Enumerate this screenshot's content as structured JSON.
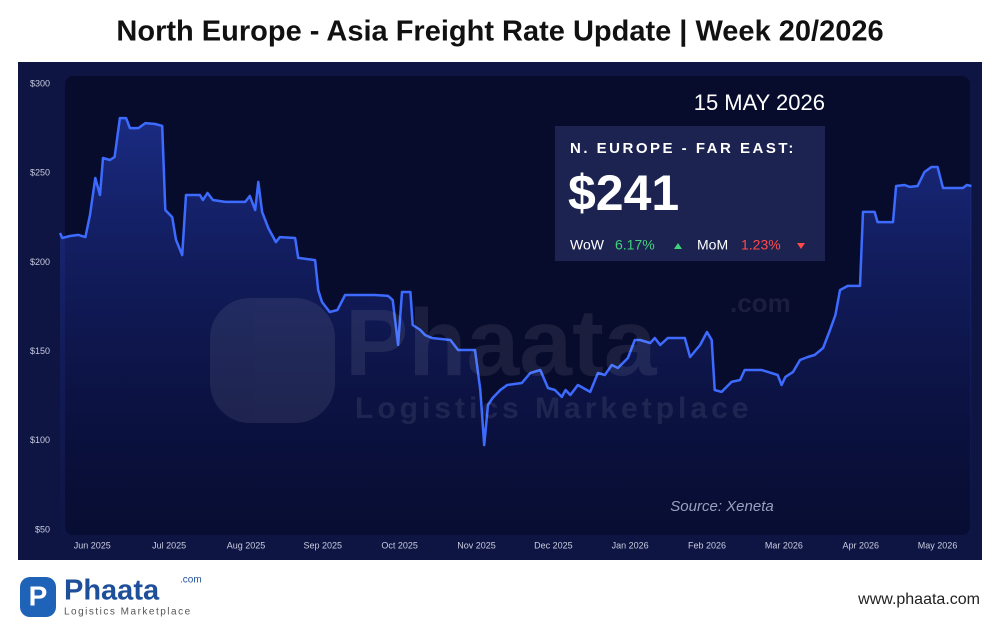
{
  "chart_data": {
    "type": "line",
    "title": "North Europe - Asia Freight Rate Update | Week 20/2026",
    "color": "#3d6bff",
    "x": [
      -0.42,
      -0.39,
      -0.29,
      -0.18,
      -0.09,
      -0.03,
      0.04,
      0.1,
      0.14,
      0.23,
      0.29,
      0.36,
      0.44,
      0.49,
      0.6,
      0.69,
      0.82,
      0.91,
      0.95,
      1.04,
      1.09,
      1.17,
      1.22,
      1.4,
      1.44,
      1.5,
      1.57,
      1.73,
      1.99,
      2.05,
      2.12,
      2.16,
      2.21,
      2.29,
      2.39,
      2.44,
      2.64,
      2.68,
      2.9,
      2.94,
      2.99,
      3.09,
      3.19,
      3.29,
      3.68,
      3.85,
      3.91,
      3.98,
      4.03,
      4.14,
      4.17,
      4.27,
      4.33,
      4.42,
      4.66,
      4.76,
      4.98,
      5.05,
      5.1,
      5.15,
      5.21,
      5.31,
      5.4,
      5.59,
      5.7,
      5.83,
      5.93,
      6.02,
      6.11,
      6.16,
      6.22,
      6.32,
      6.48,
      6.58,
      6.67,
      6.76,
      6.84,
      6.97,
      7.06,
      7.13,
      7.26,
      7.32,
      7.39,
      7.49,
      7.71,
      7.78,
      7.91,
      8.0,
      8.06,
      8.1,
      8.19,
      8.32,
      8.43,
      8.49,
      8.71,
      8.92,
      8.97,
      9.02,
      9.12,
      9.21,
      9.31,
      9.4,
      9.51,
      9.6,
      9.67,
      9.73,
      9.83,
      9.99,
      10.03,
      10.18,
      10.22,
      10.42,
      10.46,
      10.57,
      10.64,
      10.74,
      10.83,
      10.92,
      11.0,
      11.07,
      11.33,
      11.38,
      11.44
    ],
    "values": [
      216.5,
      213.7,
      214.8,
      215.4,
      214.2,
      226.6,
      247.3,
      237.8,
      258.5,
      257.4,
      259.1,
      280.9,
      280.9,
      275.3,
      275.3,
      278.1,
      277.6,
      276.5,
      229.4,
      225.4,
      212.6,
      204.1,
      237.8,
      237.8,
      235.0,
      238.9,
      235.0,
      233.9,
      233.9,
      237.2,
      229.4,
      245.1,
      228.3,
      219.3,
      211.4,
      214.2,
      213.7,
      202.5,
      201.3,
      184.5,
      177.8,
      172.2,
      173.3,
      181.7,
      181.7,
      181.2,
      178.9,
      153.7,
      183.4,
      183.4,
      164.9,
      162.1,
      159.3,
      157.6,
      156.5,
      150.9,
      150.9,
      128.5,
      97.6,
      120.1,
      124.0,
      128.5,
      131.3,
      132.4,
      138.0,
      139.7,
      129.6,
      128.5,
      124.6,
      128.5,
      125.7,
      131.3,
      127.4,
      138.0,
      136.9,
      142.5,
      140.8,
      146.4,
      156.5,
      156.5,
      154.8,
      157.6,
      153.7,
      157.6,
      157.6,
      147.0,
      153.7,
      161.0,
      156.5,
      128.5,
      127.4,
      133.0,
      134.1,
      139.7,
      139.7,
      136.9,
      131.3,
      135.8,
      138.6,
      145.3,
      147.0,
      148.1,
      152.0,
      162.1,
      170.5,
      184.5,
      186.8,
      186.8,
      228.3,
      228.3,
      222.6,
      222.6,
      242.8,
      243.4,
      242.3,
      242.8,
      250.7,
      253.5,
      253.5,
      241.7,
      241.7,
      243.4,
      242.8
    ],
    "xlim": [
      -0.42,
      11.5
    ],
    "xticks": [
      {
        "value": 0,
        "label": "Jun 2025"
      },
      {
        "value": 1,
        "label": "Jul 2025"
      },
      {
        "value": 2,
        "label": "Aug 2025"
      },
      {
        "value": 3,
        "label": "Sep 2025"
      },
      {
        "value": 4,
        "label": "Oct 2025"
      },
      {
        "value": 5,
        "label": "Nov 2025"
      },
      {
        "value": 6,
        "label": "Dec 2025"
      },
      {
        "value": 7,
        "label": "Jan 2026"
      },
      {
        "value": 8,
        "label": "Feb 2026"
      },
      {
        "value": 9,
        "label": "Mar 2026"
      },
      {
        "value": 10,
        "label": "Apr 2026"
      },
      {
        "value": 11,
        "label": "May 2026"
      }
    ],
    "ylim": [
      50,
      300
    ],
    "yticks": [
      {
        "value": 50,
        "label": "$50"
      },
      {
        "value": 100,
        "label": "$100"
      },
      {
        "value": 150,
        "label": "$150"
      },
      {
        "value": 200,
        "label": "$200"
      },
      {
        "value": 250,
        "label": "$250"
      },
      {
        "value": 300,
        "label": "$300"
      }
    ],
    "date": "15 MAY 2026",
    "route": "N. EUROPE - FAR EAST:",
    "price": "$241",
    "wow_label": "WoW",
    "wow": "6.17%",
    "mom_label": "MoM",
    "mom": "1.23%",
    "source": "Source: Xeneta"
  },
  "footer": {
    "brand": "Phaata",
    "domain": ".com",
    "tagline": "Logistics Marketplace",
    "url": "www.phaata.com"
  }
}
